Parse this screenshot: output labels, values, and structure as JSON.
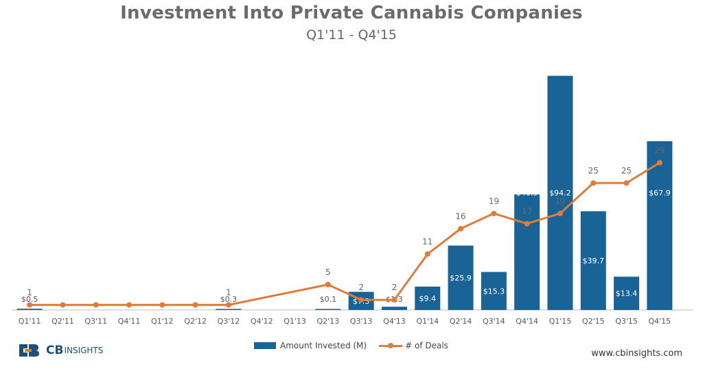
{
  "header": {
    "title": "Investment Into Private Cannabis Companies",
    "subtitle": "Q1'11 - Q4'15"
  },
  "legend": {
    "amount_label": "Amount Invested (M)",
    "deals_label": "# of Deals"
  },
  "branding": {
    "logo_cb": "CB",
    "logo_insights": "INSIGHTS",
    "website": "www.cbinsights.com"
  },
  "colors": {
    "bar": "#1a6396",
    "line": "#e07b39",
    "bar_label_inside": "#ffffff",
    "bar_label_outside": "#555555"
  },
  "chart_data": {
    "type": "bar",
    "categories": [
      "Q1'11",
      "Q2'11",
      "Q3'11",
      "Q4'11",
      "Q1'12",
      "Q2'12",
      "Q3'12",
      "Q4'12",
      "Q1'13",
      "Q2'13",
      "Q3'13",
      "Q4'13",
      "Q1'14",
      "Q2'14",
      "Q3'14",
      "Q4'14",
      "Q1'15",
      "Q2'15",
      "Q3'15",
      "Q4'15"
    ],
    "series": [
      {
        "name": "Amount Invested (M)",
        "type": "bar",
        "values": [
          0.5,
          null,
          null,
          null,
          null,
          null,
          0.3,
          null,
          null,
          0.1,
          7.3,
          1.3,
          9.4,
          25.9,
          15.3,
          46.5,
          94.2,
          39.7,
          13.4,
          67.9
        ],
        "labels": [
          "$0.5",
          "",
          "",
          "",
          "",
          "",
          "$0.3",
          "",
          "",
          "$0.1",
          "$7.3",
          "$1.3",
          "$9.4",
          "$25.9",
          "$15.3",
          "$46.5",
          "$94.2",
          "$39.7",
          "$13.4",
          "$67.9"
        ]
      },
      {
        "name": "# of Deals",
        "type": "line",
        "values": [
          1,
          1,
          1,
          1,
          1,
          1,
          1,
          null,
          null,
          5,
          2,
          2,
          11,
          16,
          19,
          17,
          19,
          25,
          25,
          29
        ],
        "labels": [
          "1",
          "",
          "",
          "",
          "",
          "",
          "1",
          "",
          "",
          "5",
          "2",
          "2",
          "11",
          "16",
          "19",
          "17",
          "19",
          "25",
          "25",
          "29"
        ]
      }
    ],
    "y_amount_max": 96,
    "y_deals_max": 47,
    "legend_position": "bottom-center"
  }
}
